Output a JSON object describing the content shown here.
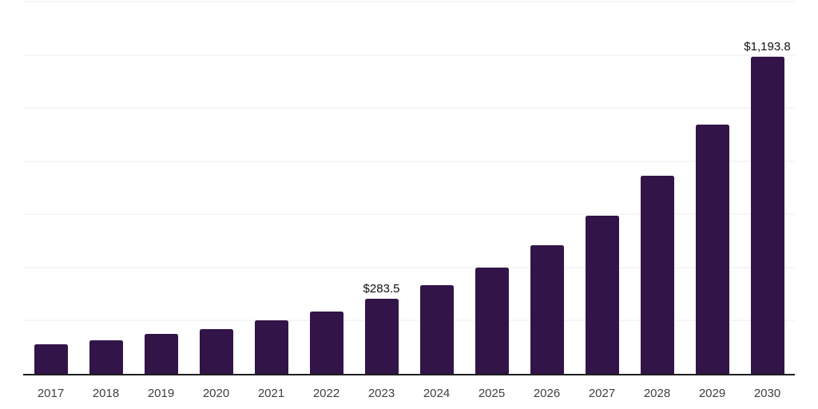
{
  "chart_data": {
    "type": "bar",
    "title": "",
    "xlabel": "",
    "ylabel": "",
    "categories": [
      "2017",
      "2018",
      "2019",
      "2020",
      "2021",
      "2022",
      "2023",
      "2024",
      "2025",
      "2026",
      "2027",
      "2028",
      "2029",
      "2030"
    ],
    "values": [
      111,
      127,
      149,
      169,
      201,
      235,
      283.5,
      334,
      399,
      484,
      596,
      744,
      937,
      1193.8
    ],
    "bar_labels": [
      "",
      "",
      "",
      "",
      "",
      "",
      "$283.5",
      "",
      "",
      "",
      "",
      "",
      "",
      "$1,193.8"
    ],
    "ylim": [
      0,
      1400
    ],
    "gridlines": [
      200,
      400,
      600,
      800,
      1000,
      1200,
      1400
    ],
    "grid": "horizontal",
    "legend_position": "none",
    "annotations": [
      "$283.5",
      "$1,193.8"
    ]
  },
  "colors": {
    "bar_fill": "#321448",
    "gridline": "#ececec",
    "axis_line": "#1f1f1f",
    "tick_label": "#404040",
    "value_label": "#111111",
    "background": "#ffffff"
  }
}
